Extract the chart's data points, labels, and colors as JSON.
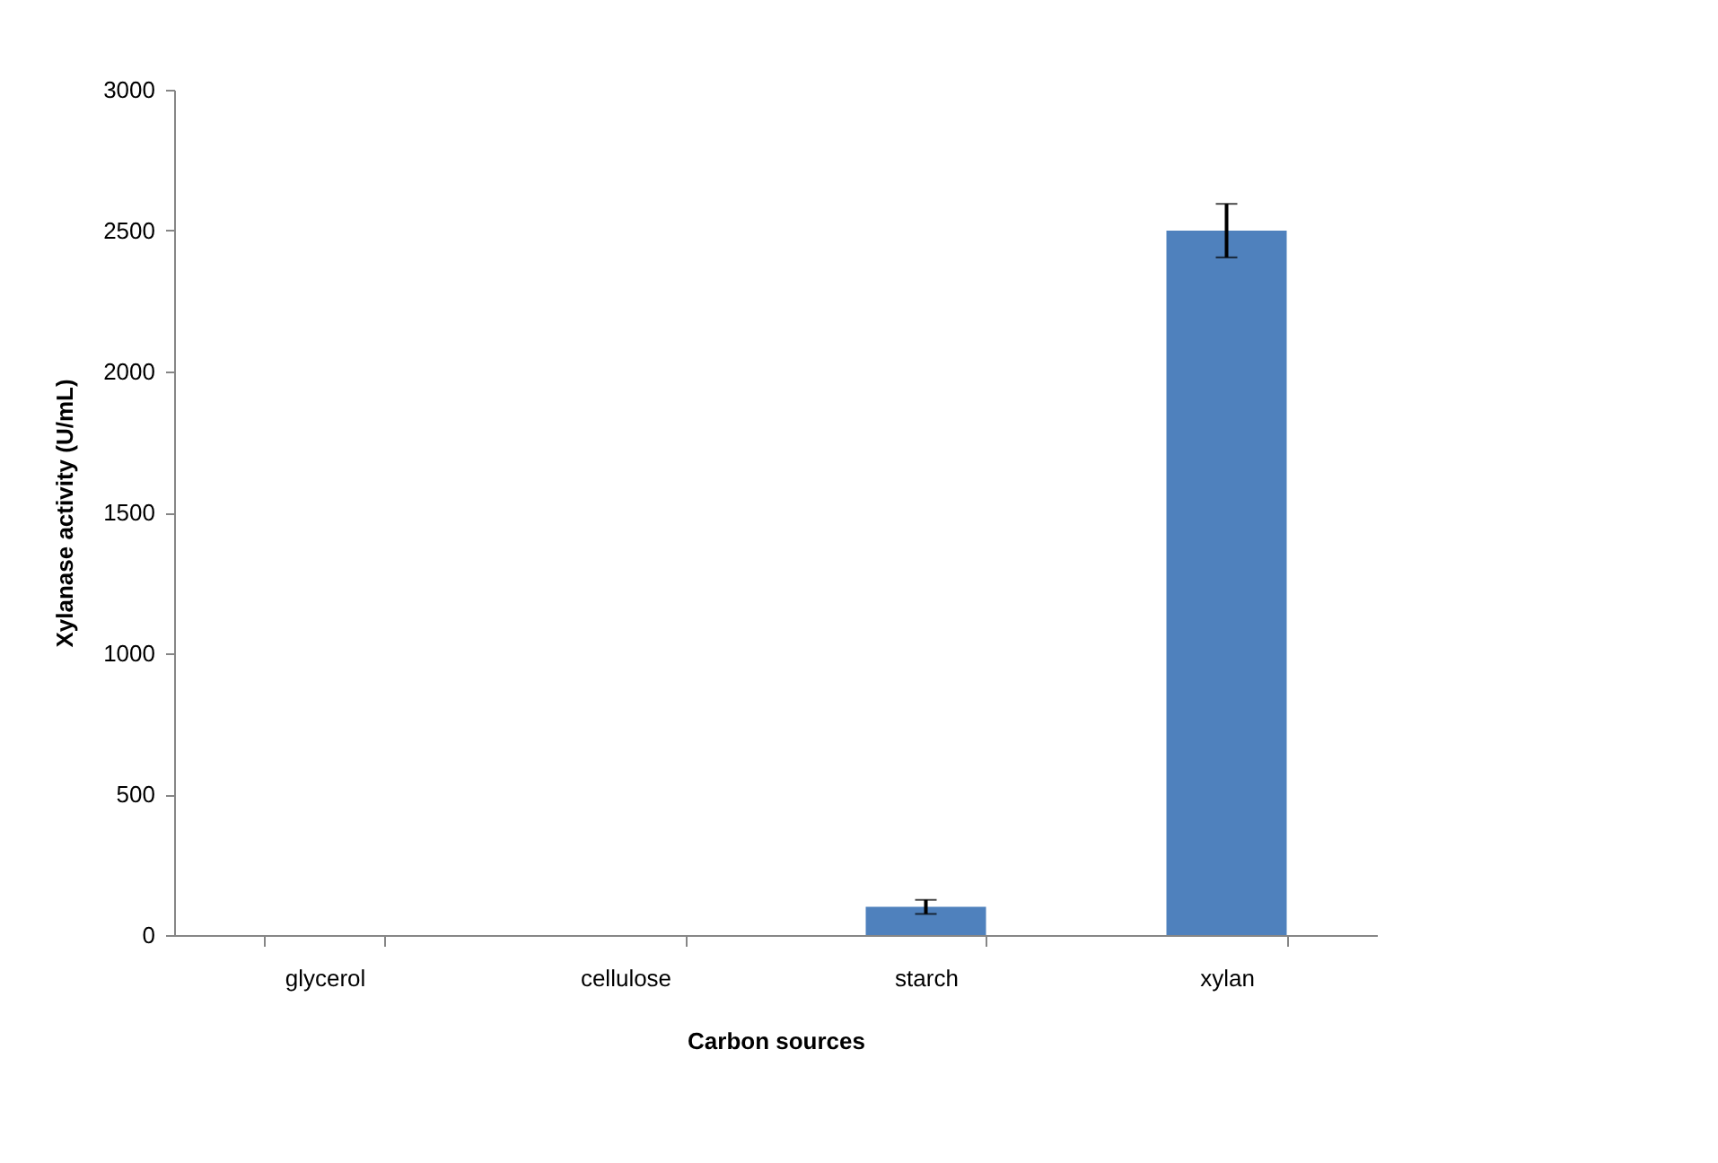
{
  "chart_data": {
    "type": "bar",
    "xlabel": "Carbon sources",
    "ylabel": "Xylanase activity (U/mL)",
    "categories": [
      "glycerol",
      "cellulose",
      "starch",
      "xylan"
    ],
    "values": [
      0,
      0,
      100,
      2500
    ],
    "errors": [
      null,
      null,
      25,
      95
    ],
    "color": "#4f81bd",
    "ylim": [
      0,
      3000
    ],
    "yticks": [
      0,
      500,
      1000,
      1500,
      2000,
      2500,
      3000
    ],
    "grid": false
  }
}
